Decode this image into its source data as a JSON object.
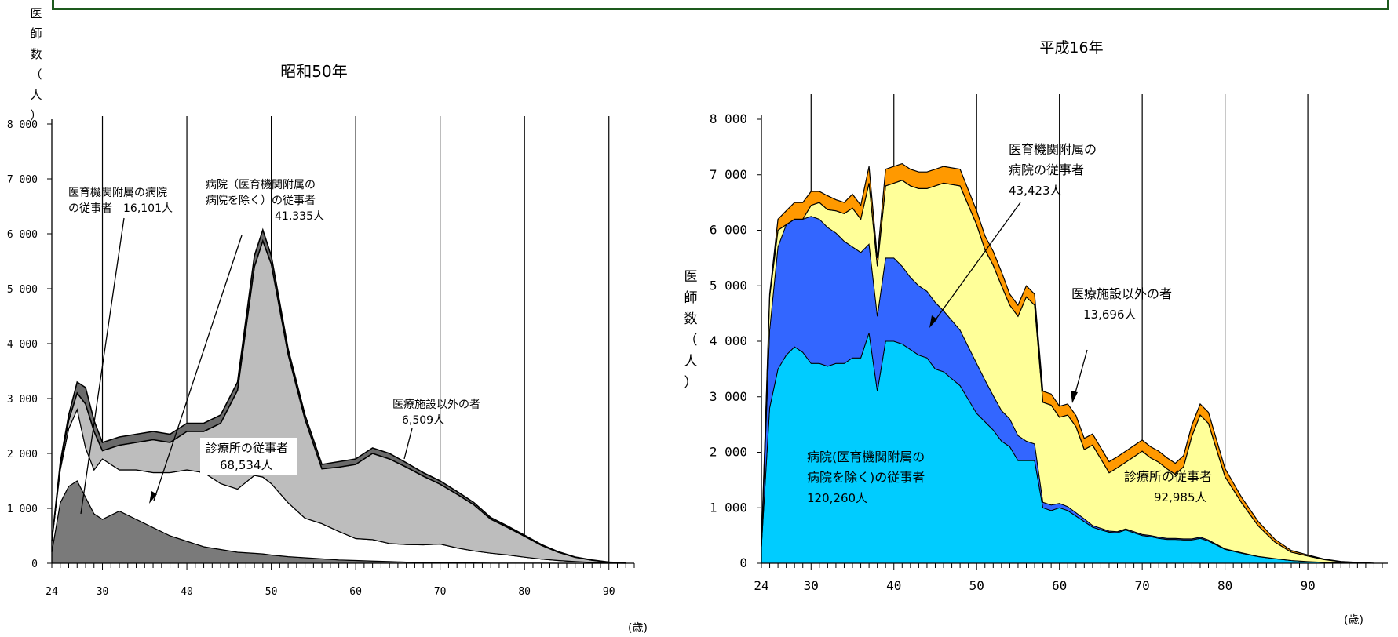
{
  "left_chart": {
    "title": "昭和50年",
    "ylabel_chars": [
      "医",
      "師",
      "数",
      "（",
      "人",
      "）"
    ],
    "y_ticks": [
      "0",
      "1 000",
      "2 000",
      "3 000",
      "4 000",
      "5 000",
      "6 000",
      "7 000",
      "8 000"
    ],
    "x_ticks": [
      "24",
      "30",
      "40",
      "50",
      "60",
      "70",
      "80",
      "90"
    ],
    "x_unit": "(歳)",
    "annotations": {
      "university": [
        "医育機関附属の病院",
        "の従事者　16,101人"
      ],
      "hospital": [
        "病院（医育機関附属の",
        "病院を除く）の従事者",
        "41,335人"
      ],
      "clinic": [
        "診療所の従事者",
        "68,534人"
      ],
      "non_medical": [
        "医療施設以外の者",
        "6,509人"
      ]
    }
  },
  "right_chart": {
    "title": "平成16年",
    "ylabel_chars": [
      "医",
      "師",
      "数",
      "（",
      "人",
      "）"
    ],
    "y_ticks": [
      "0",
      "1 000",
      "2 000",
      "3 000",
      "4 000",
      "5 000",
      "6 000",
      "7 000",
      "8 000"
    ],
    "x_ticks": [
      "24",
      "30",
      "40",
      "50",
      "60",
      "70",
      "80",
      "90"
    ],
    "x_unit": "(歳)",
    "annotations": {
      "university": [
        "医育機関附属の",
        "病院の従事者",
        "43,423人"
      ],
      "hospital": [
        "病院(医育機関附属の",
        "病院を除く)の従事者",
        "120,260人"
      ],
      "clinic": [
        "診療所の従事者",
        "92,985人"
      ],
      "non_medical": [
        "医療施設以外の者",
        "13,696人"
      ]
    }
  },
  "colors": {
    "hospital": "#00ccff",
    "university": "#3366ff",
    "clinic": "#ffff99",
    "non_medical": "#ff9900",
    "banner_border": "#1d5a1d"
  },
  "chart_data": [
    {
      "type": "area",
      "stacked": true,
      "title": "昭和50年",
      "xlabel": "",
      "ylabel": "医師数（人）",
      "xlim": [
        24,
        93
      ],
      "ylim": [
        0,
        8000
      ],
      "grid": "vertical",
      "x": [
        24,
        25,
        26,
        27,
        28,
        29,
        30,
        32,
        34,
        36,
        38,
        40,
        42,
        44,
        46,
        48,
        49,
        50,
        52,
        54,
        56,
        58,
        60,
        62,
        64,
        66,
        68,
        70,
        72,
        74,
        76,
        78,
        80,
        82,
        84,
        86,
        88,
        90,
        92
      ],
      "series": [
        {
          "name": "医育機関附属の病院の従事者",
          "values": [
            200,
            1100,
            1400,
            1500,
            1200,
            900,
            800,
            950,
            800,
            650,
            500,
            400,
            300,
            250,
            200,
            180,
            170,
            150,
            120,
            100,
            80,
            60,
            50,
            40,
            30,
            20,
            15,
            10,
            8,
            5,
            3,
            2,
            1,
            1,
            0,
            0,
            0,
            0,
            0
          ]
        },
        {
          "name": "病院（医育機関附属の病院を除く）の従事者",
          "values": [
            200,
            600,
            1050,
            1300,
            900,
            800,
            1100,
            750,
            900,
            1000,
            1150,
            1300,
            1350,
            1200,
            1150,
            1420,
            1400,
            1300,
            980,
            720,
            640,
            520,
            400,
            390,
            330,
            320,
            320,
            340,
            270,
            220,
            180,
            150,
            110,
            75,
            50,
            30,
            15,
            5,
            0
          ]
        },
        {
          "name": "診療所の従事者",
          "values": [
            0,
            80,
            150,
            300,
            800,
            700,
            150,
            450,
            500,
            600,
            550,
            700,
            750,
            1100,
            1800,
            3800,
            4300,
            4000,
            2700,
            1800,
            1000,
            1170,
            1350,
            1570,
            1540,
            1410,
            1250,
            1090,
            980,
            840,
            620,
            500,
            380,
            250,
            150,
            80,
            40,
            15,
            5
          ]
        },
        {
          "name": "医療施設以外の者",
          "values": [
            0,
            60,
            100,
            200,
            300,
            200,
            150,
            150,
            150,
            150,
            150,
            150,
            150,
            150,
            150,
            200,
            200,
            150,
            100,
            80,
            80,
            100,
            100,
            100,
            100,
            80,
            65,
            60,
            50,
            40,
            30,
            25,
            20,
            15,
            10,
            5,
            5,
            0,
            0
          ]
        }
      ],
      "annotations": [
        "医育機関附属の病院の従事者 16,101人",
        "病院（医育機関附属の病院を除く）の従事者 41,335人",
        "診療所の従事者 68,534人",
        "医療施設以外の者 6,509人"
      ]
    },
    {
      "type": "area",
      "stacked": true,
      "title": "平成16年",
      "xlabel": "",
      "ylabel": "医師数（人）",
      "xlim": [
        24,
        99
      ],
      "ylim": [
        0,
        8000
      ],
      "grid": "vertical",
      "x": [
        24,
        25,
        26,
        27,
        28,
        29,
        30,
        31,
        32,
        33,
        34,
        35,
        36,
        37,
        38,
        39,
        40,
        41,
        42,
        43,
        44,
        45,
        46,
        48,
        50,
        51,
        52,
        53,
        54,
        55,
        56,
        57,
        58,
        59,
        60,
        61,
        62,
        63,
        64,
        65,
        66,
        67,
        68,
        69,
        70,
        71,
        72,
        73,
        74,
        75,
        76,
        77,
        78,
        80,
        82,
        84,
        86,
        88,
        90,
        92,
        94,
        96,
        98
      ],
      "series": [
        {
          "name": "病院(医育機関附属の病院を除く)の従事者",
          "values": [
            300,
            2800,
            3500,
            3750,
            3900,
            3800,
            3600,
            3600,
            3550,
            3600,
            3600,
            3700,
            3700,
            4150,
            3100,
            4000,
            4000,
            3950,
            3850,
            3750,
            3700,
            3500,
            3450,
            3200,
            2700,
            2550,
            2400,
            2200,
            2100,
            1850,
            1850,
            1850,
            1000,
            950,
            1000,
            950,
            850,
            750,
            650,
            600,
            560,
            550,
            600,
            550,
            500,
            480,
            450,
            430,
            430,
            420,
            420,
            450,
            400,
            250,
            180,
            120,
            80,
            50,
            30,
            15,
            8,
            3,
            0
          ]
        },
        {
          "name": "医育機関附属の病院の従事者",
          "values": [
            0,
            1400,
            2200,
            2350,
            2300,
            2400,
            2650,
            2600,
            2500,
            2350,
            2200,
            2000,
            1900,
            1600,
            1350,
            1500,
            1500,
            1400,
            1300,
            1250,
            1200,
            1200,
            1100,
            1000,
            900,
            750,
            620,
            550,
            500,
            450,
            350,
            300,
            100,
            100,
            80,
            70,
            60,
            50,
            30,
            30,
            20,
            20,
            20,
            20,
            20,
            20,
            20,
            20,
            20,
            20,
            20,
            20,
            20,
            10,
            10,
            5,
            5,
            0,
            0,
            0,
            0,
            0,
            0
          ]
        },
        {
          "name": "診療所の従事者",
          "values": [
            0,
            600,
            300,
            0,
            0,
            0,
            200,
            300,
            320,
            400,
            500,
            700,
            600,
            1100,
            900,
            1300,
            1350,
            1550,
            1650,
            1750,
            1850,
            2100,
            2300,
            2600,
            2500,
            2350,
            2350,
            2250,
            2050,
            2150,
            2600,
            2500,
            1800,
            1800,
            1550,
            1650,
            1550,
            1250,
            1450,
            1250,
            1050,
            1150,
            1200,
            1350,
            1500,
            1400,
            1350,
            1250,
            1150,
            1300,
            1850,
            2200,
            2100,
            1300,
            900,
            550,
            300,
            150,
            100,
            50,
            20,
            10,
            0
          ]
        },
        {
          "name": "医療施設以外の者",
          "values": [
            0,
            50,
            200,
            250,
            300,
            300,
            250,
            200,
            250,
            200,
            200,
            250,
            250,
            300,
            150,
            300,
            300,
            300,
            300,
            300,
            300,
            300,
            300,
            300,
            250,
            250,
            250,
            250,
            200,
            200,
            200,
            200,
            200,
            200,
            200,
            200,
            200,
            200,
            200,
            200,
            200,
            200,
            200,
            200,
            200,
            200,
            200,
            200,
            200,
            200,
            200,
            200,
            200,
            150,
            100,
            80,
            50,
            30,
            20,
            10,
            5,
            2,
            0
          ]
        }
      ],
      "annotations": [
        "医育機関附属の病院の従事者 43,423人",
        "病院(医育機関附属の病院を除く)の従事者 120,260人",
        "診療所の従事者 92,985人",
        "医療施設以外の者 13,696人"
      ]
    }
  ]
}
